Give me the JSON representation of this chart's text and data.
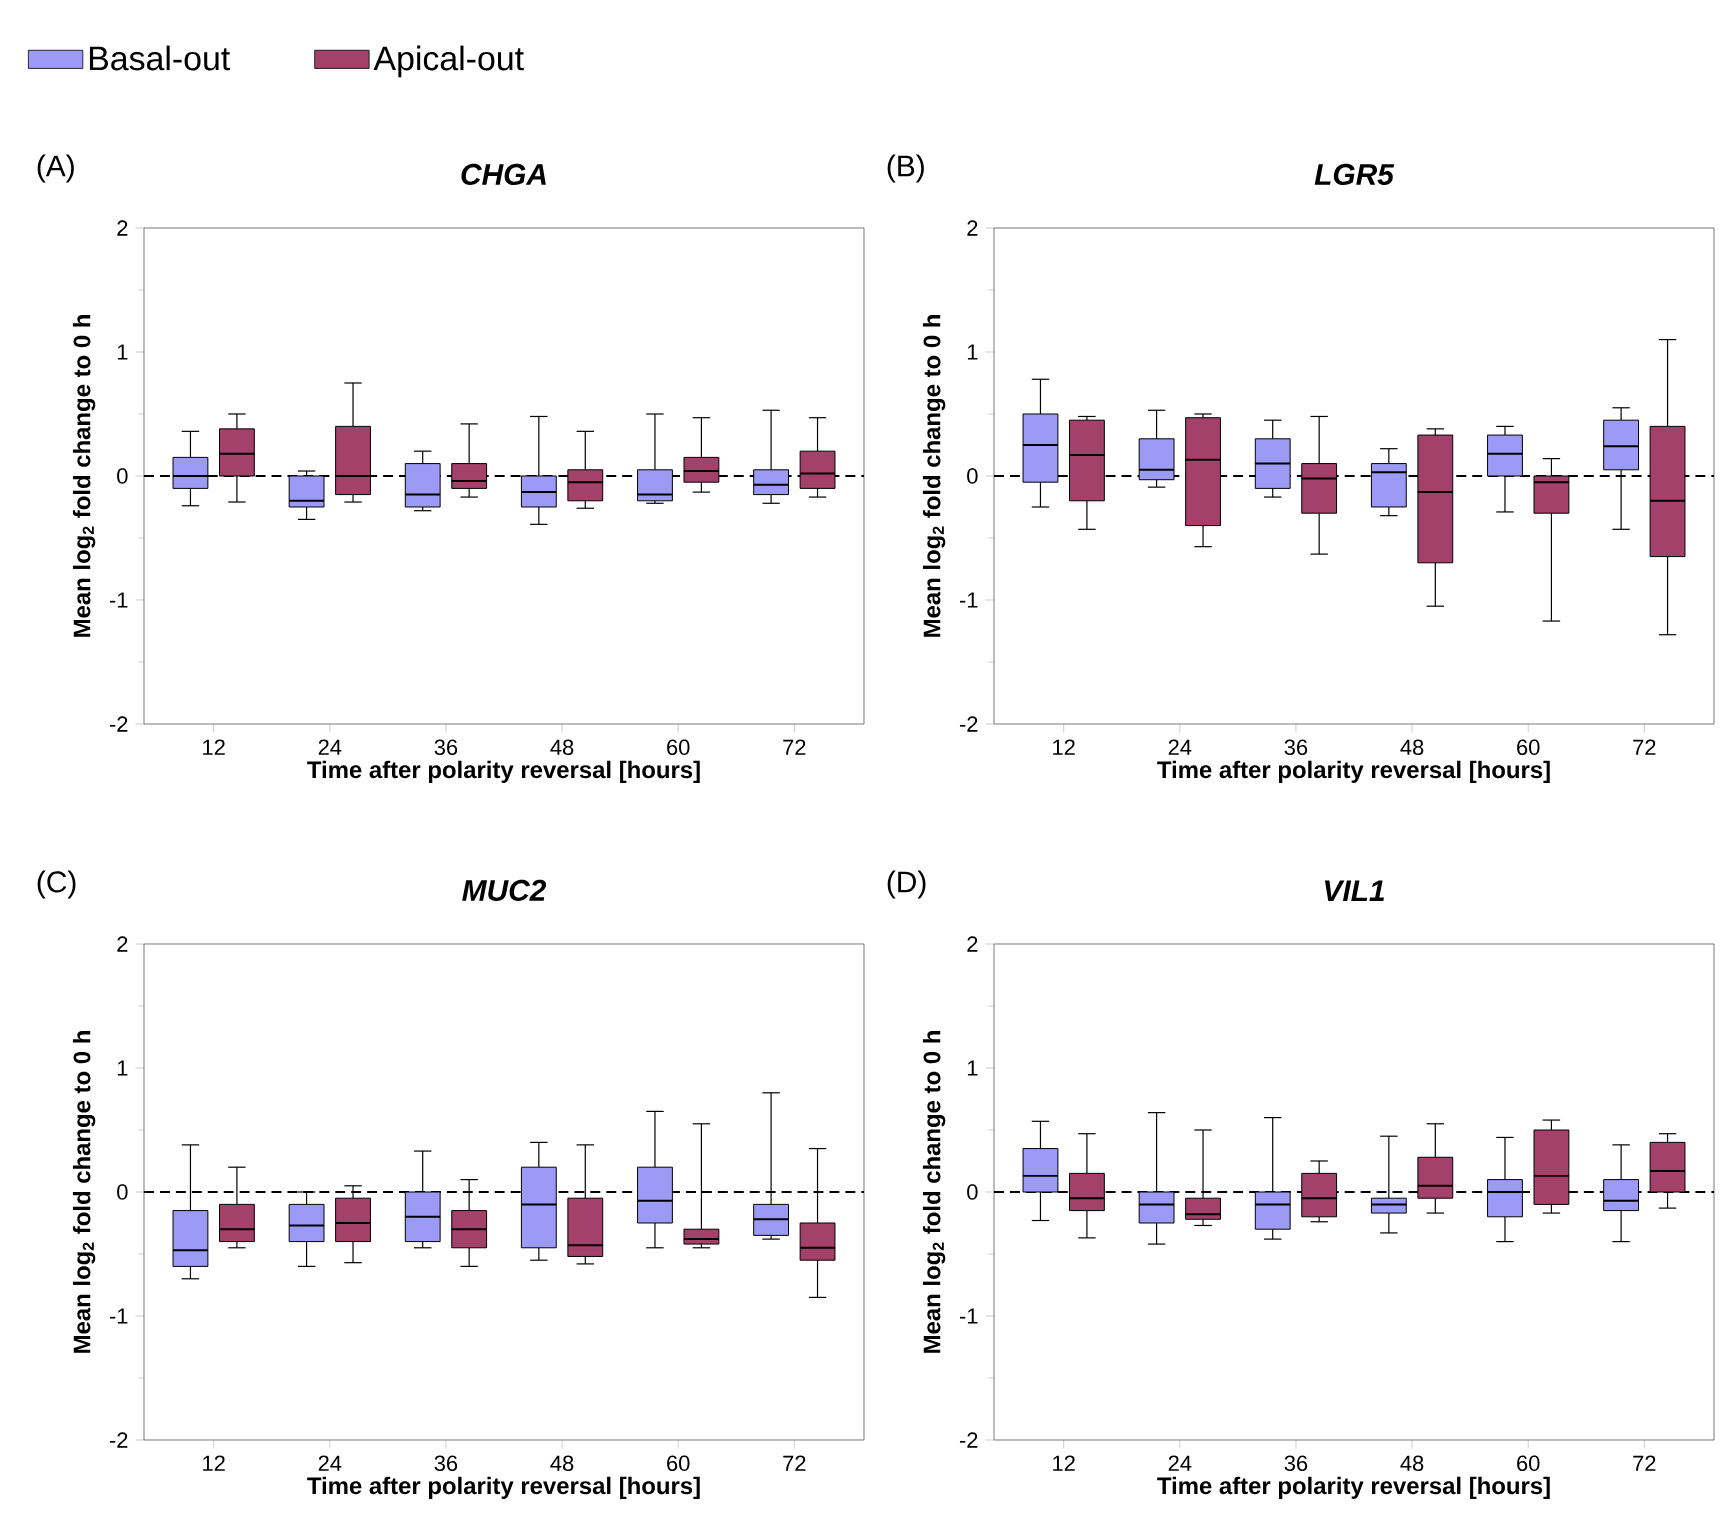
{
  "chart_data": [
    {
      "type": "box",
      "title": "CHGA",
      "annotations": [
        "(A)"
      ],
      "xlabel": "Time after polarity reversal [hours]",
      "ylabel": "Mean log$_{2}$ fold change to 0 h",
      "categories": [
        "12",
        "24",
        "36",
        "48",
        "60",
        "72"
      ],
      "ylim": [
        -2,
        2
      ],
      "yticks": [
        -2,
        -1,
        0,
        1,
        2
      ],
      "legend": "top left",
      "ref_lines": [
        {
          "axis": "y",
          "value": 0,
          "line_style": "dashed"
        }
      ],
      "series": [
        {
          "name": "Basal-out",
          "color": "#9b9bf5",
          "boxes": [
            {
              "low": -0.24,
              "q1": -0.1,
              "median": 0,
              "q3": 0.15,
              "high": 0.36
            },
            {
              "low": -0.35,
              "q1": -0.25,
              "median": -0.2,
              "q3": 0.0,
              "high": 0.04
            },
            {
              "low": -0.28,
              "q1": -0.25,
              "median": -0.15,
              "q3": 0.1,
              "high": 0.2
            },
            {
              "low": -0.39,
              "q1": -0.25,
              "median": -0.13,
              "q3": 0.0,
              "high": 0.48
            },
            {
              "low": -0.22,
              "q1": -0.2,
              "median": -0.15,
              "q3": 0.05,
              "high": 0.5
            },
            {
              "low": -0.22,
              "q1": -0.15,
              "median": -0.07,
              "q3": 0.05,
              "high": 0.53
            }
          ]
        },
        {
          "name": "Apical-out",
          "color": "#a3416b",
          "boxes": [
            {
              "low": -0.21,
              "q1": 0.0,
              "median": 0.18,
              "q3": 0.38,
              "high": 0.5
            },
            {
              "low": -0.21,
              "q1": -0.15,
              "median": 0,
              "q3": 0.4,
              "high": 0.75
            },
            {
              "low": -0.17,
              "q1": -0.1,
              "median": -0.04,
              "q3": 0.1,
              "high": 0.42
            },
            {
              "low": -0.26,
              "q1": -0.2,
              "median": -0.05,
              "q3": 0.05,
              "high": 0.36
            },
            {
              "low": -0.13,
              "q1": -0.05,
              "median": 0.04,
              "q3": 0.15,
              "high": 0.47
            },
            {
              "low": -0.17,
              "q1": -0.1,
              "median": 0.02,
              "q3": 0.2,
              "high": 0.47
            }
          ]
        }
      ]
    },
    {
      "type": "box",
      "title": "LGR5",
      "annotations": [
        "(B)"
      ],
      "xlabel": "Time after polarity reversal [hours]",
      "ylabel": "Mean log$_{2}$ fold change to 0 h",
      "categories": [
        "12",
        "24",
        "36",
        "48",
        "60",
        "72"
      ],
      "ylim": [
        -2,
        2
      ],
      "yticks": [
        -2,
        -1,
        0,
        1,
        2
      ],
      "ref_lines": [
        {
          "axis": "y",
          "value": 0,
          "line_style": "dashed"
        }
      ],
      "series": [
        {
          "color": "#9b9bf5",
          "boxes": [
            {
              "low": -0.25,
              "q1": -0.05,
              "median": 0.25,
              "q3": 0.5,
              "high": 0.78
            },
            {
              "low": -0.09,
              "q1": -0.03,
              "median": 0.05,
              "q3": 0.3,
              "high": 0.53
            },
            {
              "low": -0.17,
              "q1": -0.1,
              "median": 0.1,
              "q3": 0.3,
              "high": 0.45
            },
            {
              "low": -0.32,
              "q1": -0.25,
              "median": 0.03,
              "q3": 0.1,
              "high": 0.22
            },
            {
              "low": -0.29,
              "q1": 0.0,
              "median": 0.18,
              "q3": 0.33,
              "high": 0.4
            },
            {
              "low": -0.43,
              "q1": 0.05,
              "median": 0.24,
              "q3": 0.45,
              "high": 0.55
            }
          ]
        },
        {
          "color": "#a3416b",
          "boxes": [
            {
              "low": -0.43,
              "q1": -0.2,
              "median": 0.17,
              "q3": 0.45,
              "high": 0.48
            },
            {
              "low": -0.57,
              "q1": -0.4,
              "median": 0.13,
              "q3": 0.47,
              "high": 0.5
            },
            {
              "low": -0.63,
              "q1": -0.3,
              "median": -0.02,
              "q3": 0.1,
              "high": 0.48
            },
            {
              "low": -1.05,
              "q1": -0.7,
              "median": -0.13,
              "q3": 0.33,
              "high": 0.38
            },
            {
              "low": -1.17,
              "q1": -0.3,
              "median": -0.05,
              "q3": 0.0,
              "high": 0.14
            },
            {
              "low": -1.28,
              "q1": -0.65,
              "median": -0.2,
              "q3": 0.4,
              "high": 1.1
            }
          ]
        }
      ]
    },
    {
      "type": "box",
      "title": "MUC2",
      "annotations": [
        "(C)"
      ],
      "xlabel": "Time after polarity reversal [hours]",
      "ylabel": "Mean log$_{2}$ fold change to 0 h",
      "categories": [
        "12",
        "24",
        "36",
        "48",
        "60",
        "72"
      ],
      "ylim": [
        -2,
        2
      ],
      "yticks": [
        -2,
        -1,
        0,
        1,
        2
      ],
      "ref_lines": [
        {
          "axis": "y",
          "value": 0,
          "line_style": "dashed"
        }
      ],
      "series": [
        {
          "color": "#9b9bf5",
          "boxes": [
            {
              "low": -0.7,
              "q1": -0.6,
              "median": -0.47,
              "q3": -0.15,
              "high": 0.38
            },
            {
              "low": -0.6,
              "q1": -0.4,
              "median": -0.27,
              "q3": -0.1,
              "high": 0.0
            },
            {
              "low": -0.45,
              "q1": -0.4,
              "median": -0.2,
              "q3": 0.0,
              "high": 0.33
            },
            {
              "low": -0.55,
              "q1": -0.45,
              "median": -0.1,
              "q3": 0.2,
              "high": 0.4
            },
            {
              "low": -0.45,
              "q1": -0.25,
              "median": -0.07,
              "q3": 0.2,
              "high": 0.65
            },
            {
              "low": -0.38,
              "q1": -0.35,
              "median": -0.22,
              "q3": -0.1,
              "high": 0.8
            }
          ]
        },
        {
          "color": "#a3416b",
          "boxes": [
            {
              "low": -0.45,
              "q1": -0.4,
              "median": -0.3,
              "q3": -0.1,
              "high": 0.2
            },
            {
              "low": -0.57,
              "q1": -0.4,
              "median": -0.25,
              "q3": -0.05,
              "high": 0.05
            },
            {
              "low": -0.6,
              "q1": -0.45,
              "median": -0.3,
              "q3": -0.15,
              "high": 0.1
            },
            {
              "low": -0.58,
              "q1": -0.52,
              "median": -0.43,
              "q3": -0.05,
              "high": 0.38
            },
            {
              "low": -0.45,
              "q1": -0.42,
              "median": -0.38,
              "q3": -0.3,
              "high": 0.55
            },
            {
              "low": -0.85,
              "q1": -0.55,
              "median": -0.45,
              "q3": -0.25,
              "high": 0.35
            }
          ]
        }
      ]
    },
    {
      "type": "box",
      "title": "VIL1",
      "annotations": [
        "(D)"
      ],
      "xlabel": "Time after polarity reversal [hours]",
      "ylabel": "Mean log$_{2}$ fold change to 0 h",
      "categories": [
        "12",
        "24",
        "36",
        "48",
        "60",
        "72"
      ],
      "ylim": [
        -2,
        2
      ],
      "yticks": [
        -2,
        -1,
        0,
        1,
        2
      ],
      "ref_lines": [
        {
          "axis": "y",
          "value": 0,
          "line_style": "dashed"
        }
      ],
      "series": [
        {
          "color": "#9b9bf5",
          "boxes": [
            {
              "low": -0.23,
              "q1": 0.0,
              "median": 0.13,
              "q3": 0.35,
              "high": 0.57
            },
            {
              "low": -0.42,
              "q1": -0.25,
              "median": -0.1,
              "q3": 0.0,
              "high": 0.64
            },
            {
              "low": -0.38,
              "q1": -0.3,
              "median": -0.1,
              "q3": 0.0,
              "high": 0.6
            },
            {
              "low": -0.33,
              "q1": -0.17,
              "median": -0.1,
              "q3": -0.05,
              "high": 0.45
            },
            {
              "low": -0.4,
              "q1": -0.2,
              "median": 0.0,
              "q3": 0.1,
              "high": 0.44
            },
            {
              "low": -0.4,
              "q1": -0.15,
              "median": -0.07,
              "q3": 0.1,
              "high": 0.38
            }
          ]
        },
        {
          "color": "#a3416b",
          "boxes": [
            {
              "low": -0.37,
              "q1": -0.15,
              "median": -0.05,
              "q3": 0.15,
              "high": 0.47
            },
            {
              "low": -0.27,
              "q1": -0.22,
              "median": -0.18,
              "q3": -0.05,
              "high": 0.5
            },
            {
              "low": -0.24,
              "q1": -0.2,
              "median": -0.05,
              "q3": 0.15,
              "high": 0.25
            },
            {
              "low": -0.17,
              "q1": -0.05,
              "median": 0.05,
              "q3": 0.28,
              "high": 0.55
            },
            {
              "low": -0.17,
              "q1": -0.1,
              "median": 0.13,
              "q3": 0.5,
              "high": 0.58
            },
            {
              "low": -0.13,
              "q1": 0.0,
              "median": 0.17,
              "q3": 0.4,
              "high": 0.47
            }
          ]
        }
      ]
    }
  ]
}
